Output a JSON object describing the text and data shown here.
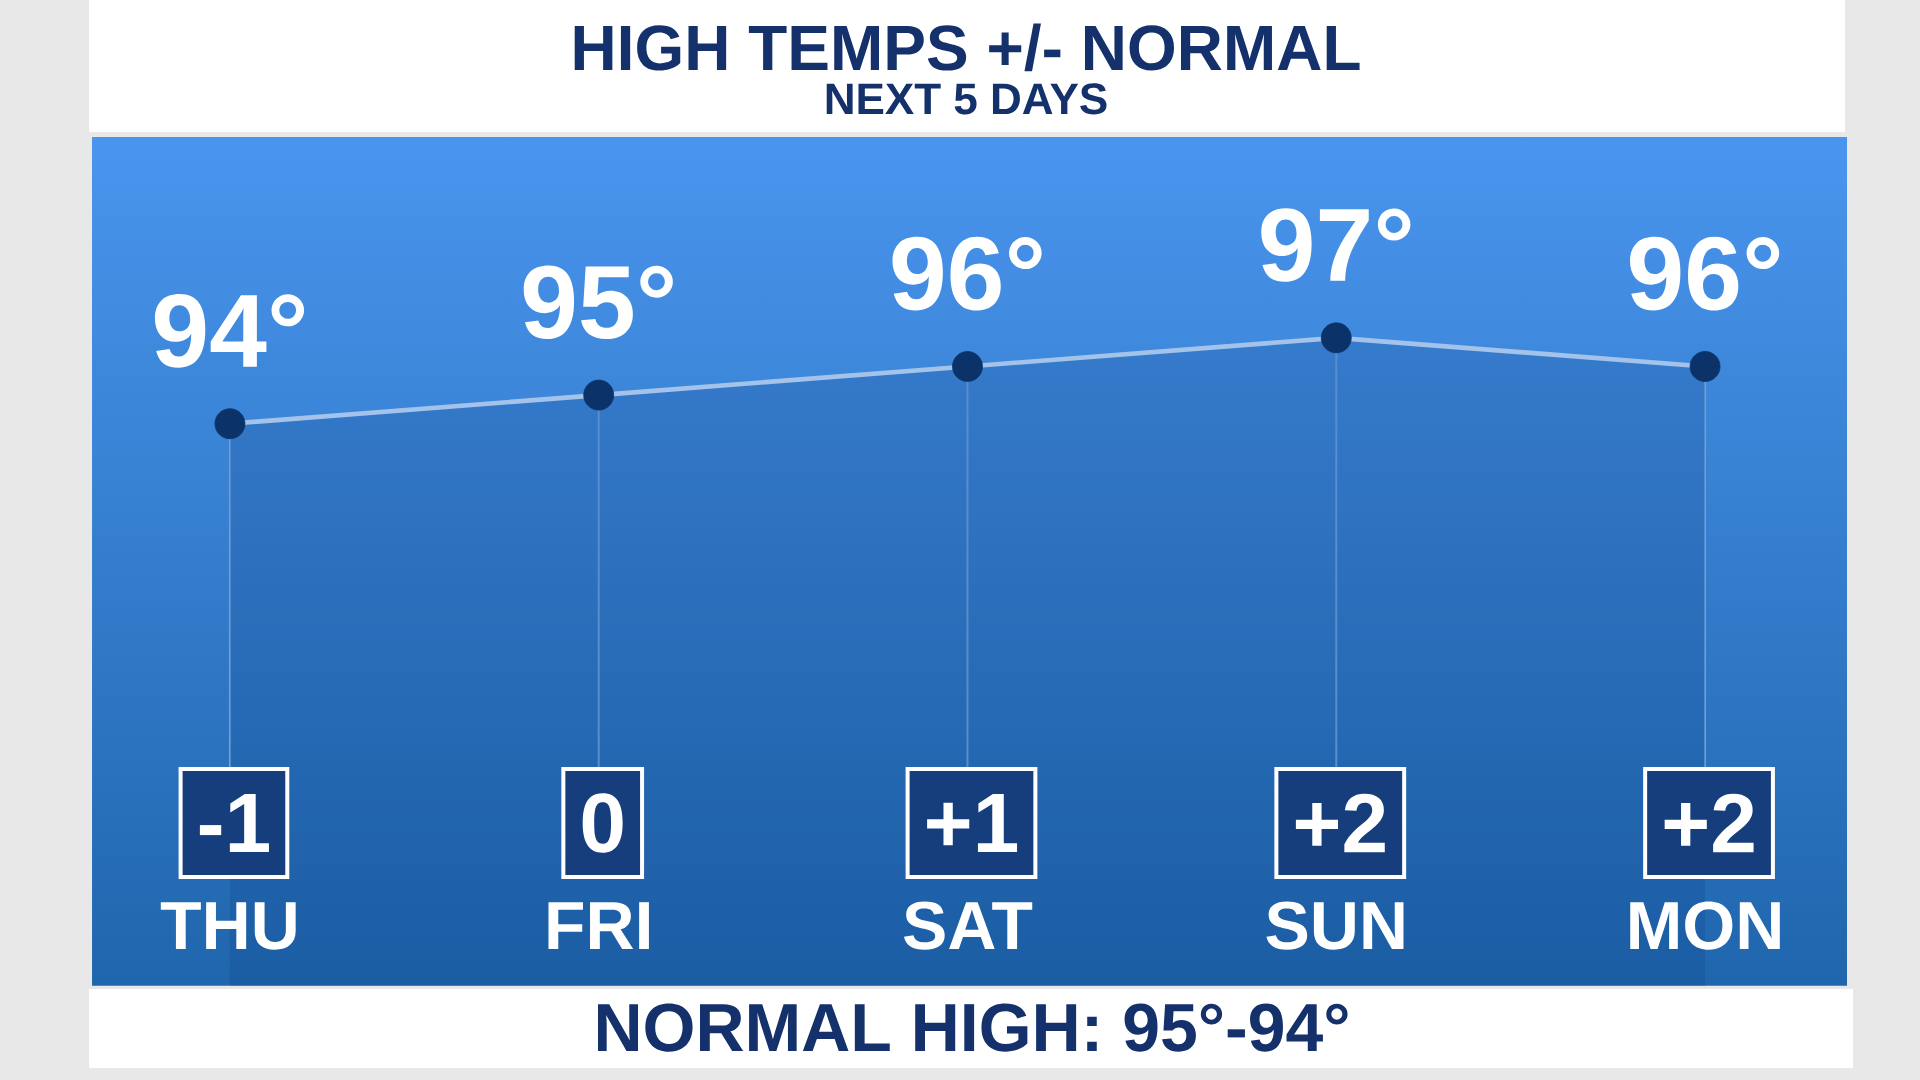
{
  "chart_data": {
    "type": "area",
    "title": "HIGH TEMPS +/- NORMAL",
    "subtitle": "NEXT 5 DAYS",
    "categories": [
      "THU",
      "FRI",
      "SAT",
      "SUN",
      "MON"
    ],
    "values": [
      94,
      95,
      96,
      97,
      96
    ],
    "color": "#0c3a78",
    "value_labels": [
      "94°",
      "95°",
      "96°",
      "97°",
      "96°"
    ],
    "marker": "circle",
    "line_style": "solid",
    "tick_labels": "x",
    "annotations": [
      "-1",
      "0",
      "+1",
      "+2",
      "+2",
      "NORMAL HIGH: 95°-94°"
    ]
  }
}
